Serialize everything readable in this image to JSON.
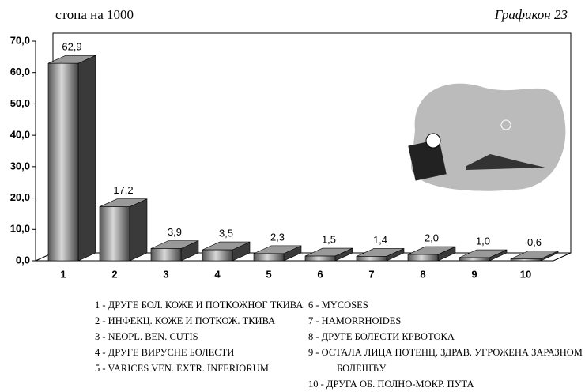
{
  "chart_data": {
    "type": "bar3d",
    "subtitle": "стопа на 1000",
    "title": "Графикон 23",
    "categories": [
      "1",
      "2",
      "3",
      "4",
      "5",
      "6",
      "7",
      "8",
      "9",
      "10"
    ],
    "values": [
      62.9,
      17.2,
      3.9,
      3.5,
      2.3,
      1.5,
      1.4,
      2.0,
      1.0,
      0.6
    ],
    "value_labels": [
      "62,9",
      "17,2",
      "3,9",
      "3,5",
      "2,3",
      "1,5",
      "1,4",
      "2,0",
      "1,0",
      "0,6"
    ],
    "color": "#808080",
    "ylim": [
      0,
      70
    ],
    "yticks": [
      {
        "value": 0,
        "label": "0,0"
      },
      {
        "value": 10,
        "label": "10,0"
      },
      {
        "value": 20,
        "label": "20,0"
      },
      {
        "value": 30,
        "label": "30,0"
      },
      {
        "value": 40,
        "label": "40,0"
      },
      {
        "value": 50,
        "label": "50,0"
      },
      {
        "value": 60,
        "label": "60,0"
      },
      {
        "value": 70,
        "label": "70,0"
      }
    ],
    "legend": [
      "1 - ДРУГЕ БОЛ. КОЖЕ И ПОТКОЖНОГ ТКИВА",
      "2 - ИНФЕКЦ. КОЖЕ И ПОТКОЖ. ТКИВА",
      "3 - NEOPL. BEN. CUTIS",
      "4 - ДРУГЕ ВИРУСНЕ БОЛЕСТИ",
      "5 - VARICES VEN. EXTR. INFERIORUM",
      "6 - MYCOSES",
      "7 - HAMORRHOIDES",
      "8 - ДРУГЕ БОЛЕСТИ КРВОТОКА",
      "9 - ОСТАЛА ЛИЦА ПОТЕНЦ. ЗДРАВ. УГРОЖЕНА ЗАРАЗНОМ БОЛЕШЋУ",
      "10 - ДРУГА ОБ. ПОЛНО-МОКР. ПУТА"
    ]
  }
}
